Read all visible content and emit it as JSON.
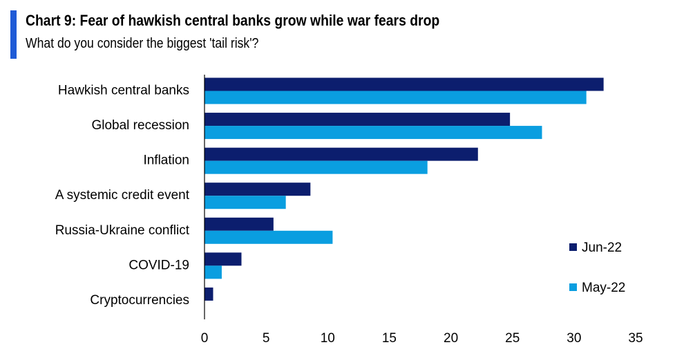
{
  "header": {
    "title": "Chart 9: Fear of hawkish central banks grow while war fears drop",
    "subtitle": "What do you consider the biggest 'tail risk'?",
    "accent_color": "#1f5bd6"
  },
  "chart_data": {
    "type": "bar",
    "orientation": "horizontal",
    "title": "Chart 9: Fear of hawkish central banks grow while war fears drop",
    "subtitle": "What do you consider the biggest 'tail risk'?",
    "xlabel": "",
    "ylabel": "",
    "xlim": [
      0,
      35
    ],
    "xticks": [
      0,
      5,
      10,
      15,
      20,
      25,
      30,
      35
    ],
    "grid": false,
    "legend_position": "right",
    "categories": [
      "Hawkish central banks",
      "Global recession",
      "Inflation",
      "A systemic credit event",
      "Russia-Ukraine conflict",
      "COVID-19",
      "Cryptocurrencies"
    ],
    "series": [
      {
        "name": "Jun-22",
        "color": "#0c1e6e",
        "values": [
          32.4,
          24.8,
          22.2,
          8.6,
          5.6,
          3.0,
          0.7
        ]
      },
      {
        "name": "May-22",
        "color": "#0a9ee0",
        "values": [
          31.0,
          27.4,
          18.1,
          6.6,
          10.4,
          1.4,
          0.0
        ]
      }
    ]
  }
}
